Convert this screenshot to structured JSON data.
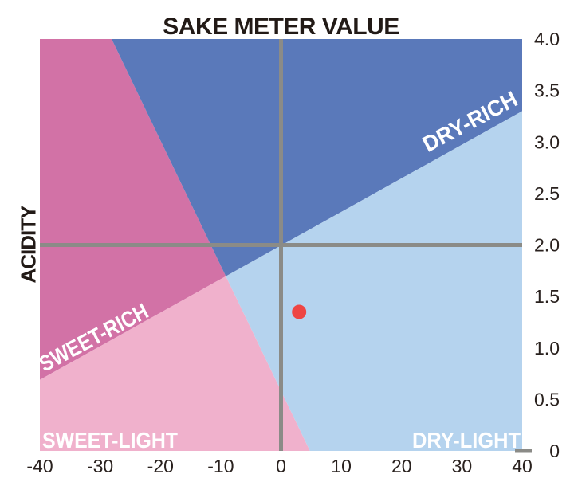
{
  "page": {
    "background": "#ffffff"
  },
  "colors": {
    "dry_rich": "#5a79ba",
    "dry_light": "#b5d3ee",
    "sweet_rich": "#d272a6",
    "sweet_light": "#f0b1cc",
    "point": "#ee4543",
    "axis": "#8b8b87",
    "title_text": "#221a16",
    "tick_text": "#29211e",
    "region_label_text": "#ffffff"
  },
  "chart_data": {
    "type": "scatter",
    "title": "SAKE METER VALUE",
    "xlabel": "SAKE METER VALUE",
    "ylabel": "ACIDITY",
    "xlim": [
      -40,
      40
    ],
    "ylim": [
      0,
      4
    ],
    "x_tick_values": [
      -40,
      -30,
      -20,
      -10,
      0,
      10,
      20,
      30,
      40
    ],
    "x_tick_labels": [
      "-40",
      "-30",
      "-20",
      "-10",
      "0",
      "10",
      "20",
      "30",
      "40"
    ],
    "y_tick_values": [
      0,
      0.5,
      1,
      1.5,
      2,
      2.5,
      3,
      3.5,
      4
    ],
    "y_tick_labels": [
      "0",
      "0.5",
      "1.0",
      "1.5",
      "2.0",
      "2.5",
      "3.0",
      "3.5",
      "4.0"
    ],
    "grid": false,
    "legend": false,
    "crosshair": {
      "x": 0,
      "y": 2.0
    },
    "points": [
      {
        "smv": 3,
        "acidity": 1.35
      }
    ],
    "regions": [
      {
        "key": "sweet-rich",
        "label": "SWEET-RICH",
        "position": "upper-left"
      },
      {
        "key": "dry-rich",
        "label": "DRY-RICH",
        "position": "upper-right"
      },
      {
        "key": "sweet-light",
        "label": "SWEET-LIGHT",
        "position": "lower-left"
      },
      {
        "key": "dry-light",
        "label": "DRY-LIGHT",
        "position": "lower-right"
      }
    ],
    "boundaries": {
      "steep_line": {
        "x1": -28.1,
        "y1": 4,
        "x2": 4.8,
        "y2": 0
      },
      "shallow_line": {
        "x1": -40,
        "y1": 0.69,
        "x2": 40,
        "y2": 3.3
      }
    }
  }
}
